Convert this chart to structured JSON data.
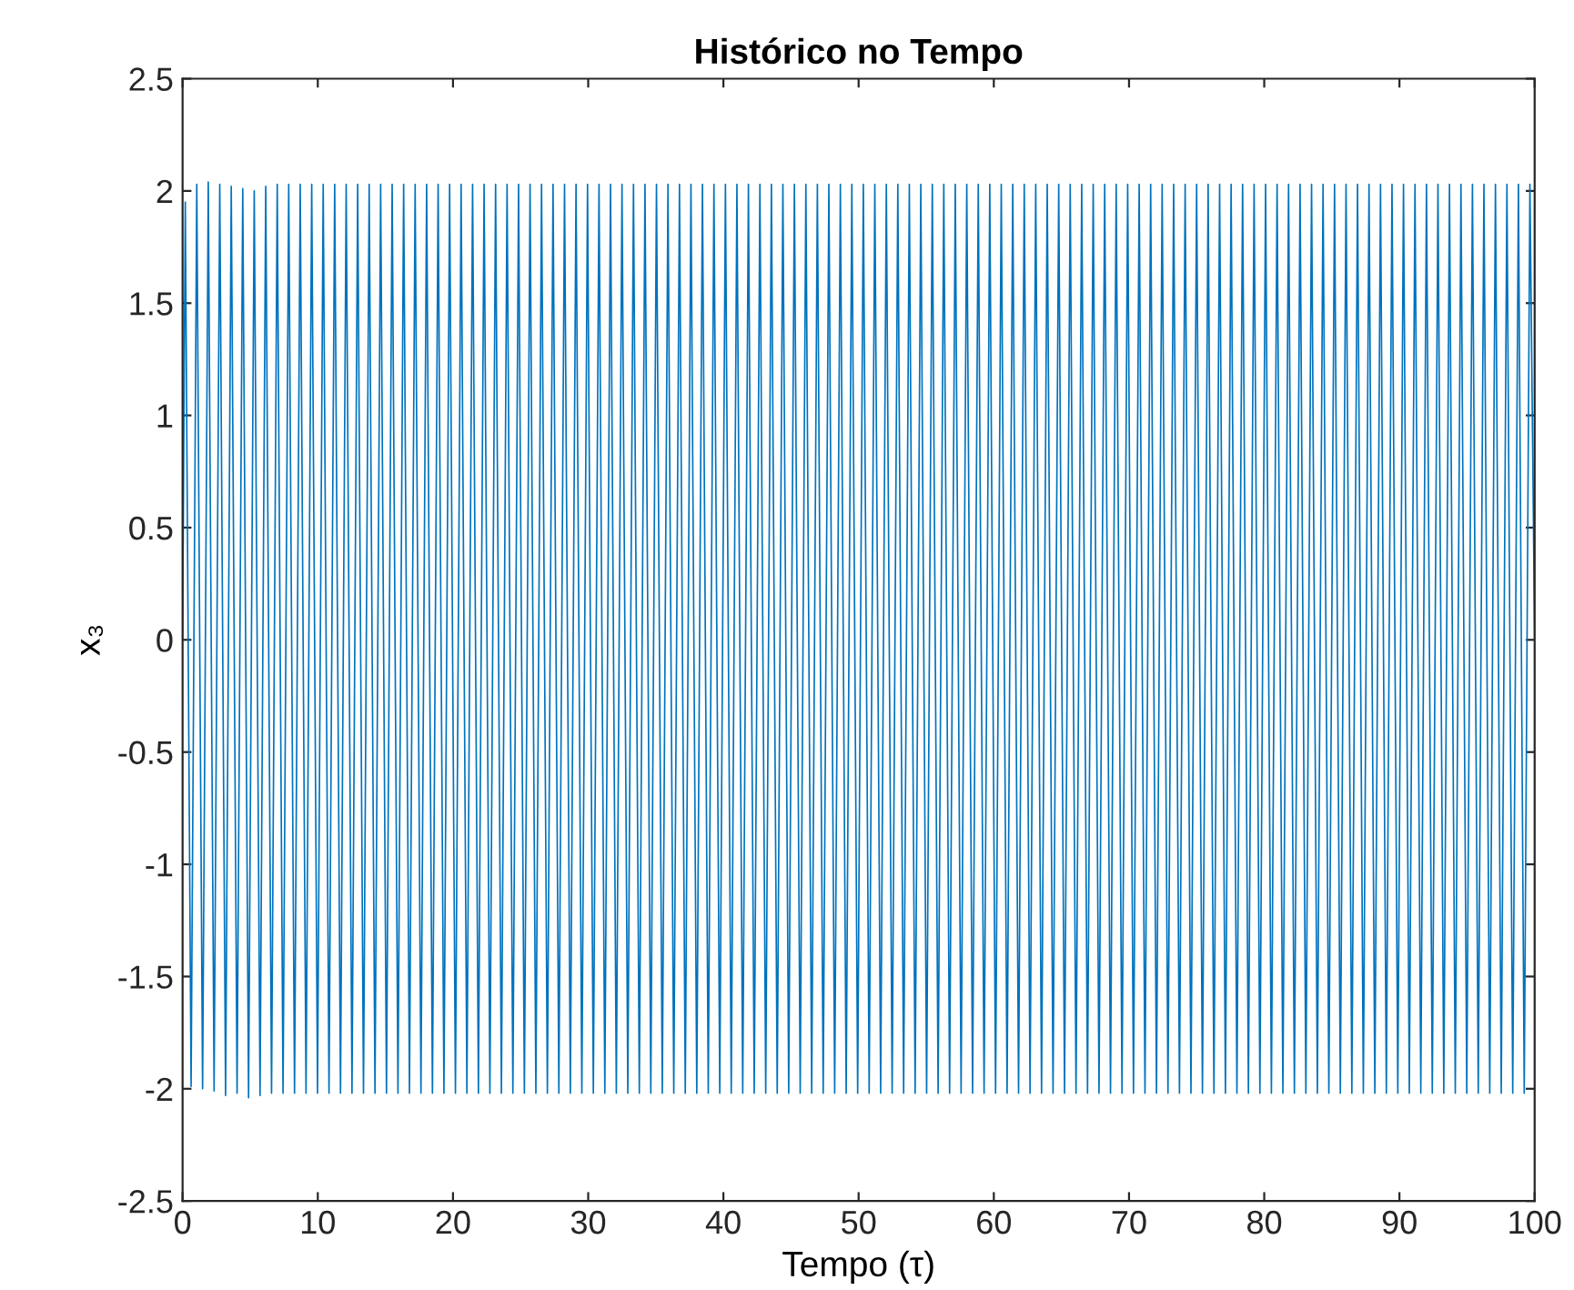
{
  "chart_data": {
    "type": "line",
    "title": "Histórico no Tempo",
    "xlabel": "Tempo (τ)",
    "ylabel": "x₃",
    "xlim": [
      0,
      100
    ],
    "ylim": [
      -2.5,
      2.5
    ],
    "xticks": [
      0,
      10,
      20,
      30,
      40,
      50,
      60,
      70,
      80,
      90,
      100
    ],
    "yticks": [
      -2.5,
      -2,
      -1.5,
      -1,
      -0.5,
      0,
      0.5,
      1,
      1.5,
      2,
      2.5
    ],
    "grid": false,
    "legend": false,
    "series": [
      {
        "color": "#0072bd",
        "x": [
          0,
          0.2,
          0.63,
          1.05,
          1.48,
          1.9,
          2.33,
          2.75,
          3.18,
          3.6,
          4.03,
          4.45,
          4.88,
          5.3,
          5.73,
          6.15,
          6.58,
          7,
          7.43,
          7.85,
          8.28,
          8.7,
          9.13,
          9.55,
          9.98,
          10.4,
          10.83,
          11.25,
          11.68,
          12.1,
          12.53,
          12.95,
          13.38,
          13.8,
          14.23,
          14.65,
          15.08,
          15.5,
          15.93,
          16.35,
          16.78,
          17.2,
          17.63,
          18.05,
          18.48,
          18.9,
          19.33,
          19.75,
          20.18,
          20.6,
          21.03,
          21.45,
          21.88,
          22.3,
          22.73,
          23.15,
          23.58,
          24,
          24.43,
          24.85,
          25.28,
          25.7,
          26.13,
          26.55,
          26.98,
          27.4,
          27.83,
          28.25,
          28.68,
          29.1,
          29.53,
          29.95,
          30.38,
          30.8,
          31.23,
          31.65,
          32.08,
          32.5,
          32.93,
          33.35,
          33.78,
          34.2,
          34.63,
          35.05,
          35.48,
          35.9,
          36.33,
          36.75,
          37.18,
          37.6,
          38.03,
          38.45,
          38.88,
          39.3,
          39.73,
          40.15,
          40.58,
          41,
          41.43,
          41.85,
          42.28,
          42.7,
          43.13,
          43.55,
          43.98,
          44.4,
          44.83,
          45.25,
          45.68,
          46.1,
          46.53,
          46.95,
          47.38,
          47.8,
          48.23,
          48.65,
          49.08,
          49.5,
          49.93,
          50.35,
          50.78,
          51.2,
          51.63,
          52.05,
          52.48,
          52.9,
          53.33,
          53.75,
          54.18,
          54.6,
          55.03,
          55.45,
          55.88,
          56.3,
          56.73,
          57.15,
          57.58,
          58,
          58.43,
          58.85,
          59.28,
          59.7,
          60.13,
          60.55,
          60.98,
          61.4,
          61.83,
          62.25,
          62.68,
          63.1,
          63.53,
          63.95,
          64.38,
          64.8,
          65.23,
          65.65,
          66.08,
          66.5,
          66.93,
          67.35,
          67.78,
          68.2,
          68.63,
          69.05,
          69.48,
          69.9,
          70.33,
          70.75,
          71.18,
          71.6,
          72.03,
          72.45,
          72.88,
          73.3,
          73.73,
          74.15,
          74.58,
          75,
          75.43,
          75.85,
          76.28,
          76.7,
          77.13,
          77.55,
          77.98,
          78.4,
          78.83,
          79.25,
          79.68,
          80.1,
          80.53,
          80.95,
          81.38,
          81.8,
          82.23,
          82.65,
          83.08,
          83.5,
          83.93,
          84.35,
          84.78,
          85.2,
          85.63,
          86.05,
          86.48,
          86.9,
          87.33,
          87.75,
          88.18,
          88.6,
          89.03,
          89.45,
          89.88,
          90.3,
          90.73,
          91.15,
          91.58,
          92,
          92.43,
          92.85,
          93.28,
          93.7,
          94.13,
          94.55,
          94.98,
          95.4,
          95.83,
          96.25,
          96.68,
          97.1,
          97.53,
          97.95,
          98.38,
          98.8,
          99.23,
          99.65,
          100
        ],
        "values": [
          0,
          1.95,
          -1.99,
          2.03,
          -2.0,
          2.04,
          -2.01,
          2.03,
          -2.03,
          2.02,
          -2.02,
          2.01,
          -2.04,
          2.0,
          -2.03,
          2.02,
          -2.02,
          2.03,
          -2.02,
          2.03,
          -2.02,
          2.03,
          -2.02,
          2.03,
          -2.02,
          2.03,
          -2.02,
          2.03,
          -2.02,
          2.03,
          -2.02,
          2.03,
          -2.02,
          2.03,
          -2.02,
          2.03,
          -2.02,
          2.03,
          -2.02,
          2.03,
          -2.02,
          2.03,
          -2.02,
          2.03,
          -2.02,
          2.03,
          -2.02,
          2.03,
          -2.02,
          2.03,
          -2.02,
          2.03,
          -2.02,
          2.03,
          -2.02,
          2.03,
          -2.02,
          2.03,
          -2.02,
          2.03,
          -2.02,
          2.03,
          -2.02,
          2.03,
          -2.02,
          2.03,
          -2.02,
          2.03,
          -2.02,
          2.03,
          -2.02,
          2.03,
          -2.02,
          2.03,
          -2.02,
          2.03,
          -2.02,
          2.03,
          -2.02,
          2.03,
          -2.02,
          2.03,
          -2.02,
          2.03,
          -2.02,
          2.03,
          -2.02,
          2.03,
          -2.02,
          2.03,
          -2.02,
          2.03,
          -2.02,
          2.03,
          -2.02,
          2.03,
          -2.02,
          2.03,
          -2.02,
          2.03,
          -2.02,
          2.03,
          -2.02,
          2.03,
          -2.02,
          2.03,
          -2.02,
          2.03,
          -2.02,
          2.03,
          -2.02,
          2.03,
          -2.02,
          2.03,
          -2.02,
          2.03,
          -2.02,
          2.03,
          -2.02,
          2.03,
          -2.02,
          2.03,
          -2.02,
          2.03,
          -2.02,
          2.03,
          -2.02,
          2.03,
          -2.02,
          2.03,
          -2.02,
          2.03,
          -2.02,
          2.03,
          -2.02,
          2.03,
          -2.02,
          2.03,
          -2.02,
          2.03,
          -2.02,
          2.03,
          -2.02,
          2.03,
          -2.02,
          2.03,
          -2.02,
          2.03,
          -2.02,
          2.03,
          -2.02,
          2.03,
          -2.02,
          2.03,
          -2.02,
          2.03,
          -2.02,
          2.03,
          -2.02,
          2.03,
          -2.02,
          2.03,
          -2.02,
          2.03,
          -2.02,
          2.03,
          -2.02,
          2.03,
          -2.02,
          2.03,
          -2.02,
          2.03,
          -2.02,
          2.03,
          -2.02,
          2.03,
          -2.02,
          2.03,
          -2.02,
          2.03,
          -2.02,
          2.03,
          -2.02,
          2.03,
          -2.02,
          2.03,
          -2.02,
          2.03,
          -2.02,
          2.03,
          -2.02,
          2.03,
          -2.02,
          2.03,
          -2.02,
          2.03,
          -2.02,
          2.03,
          -2.02,
          2.03,
          -2.02,
          2.03,
          -2.02,
          2.03,
          -2.02,
          2.03,
          -2.02,
          2.03,
          -2.02,
          2.03,
          -2.02,
          2.03,
          -2.02,
          2.03,
          -2.02,
          2.03,
          -2.02,
          2.03,
          -2.02,
          2.03,
          -2.02,
          2.03,
          -2.02,
          2.03,
          -2.02,
          2.03,
          -2.02,
          2.03,
          -2.02,
          2.03,
          -2.02,
          2.03,
          -2.02,
          2.03,
          -2.02,
          2.03,
          0
        ]
      }
    ]
  }
}
